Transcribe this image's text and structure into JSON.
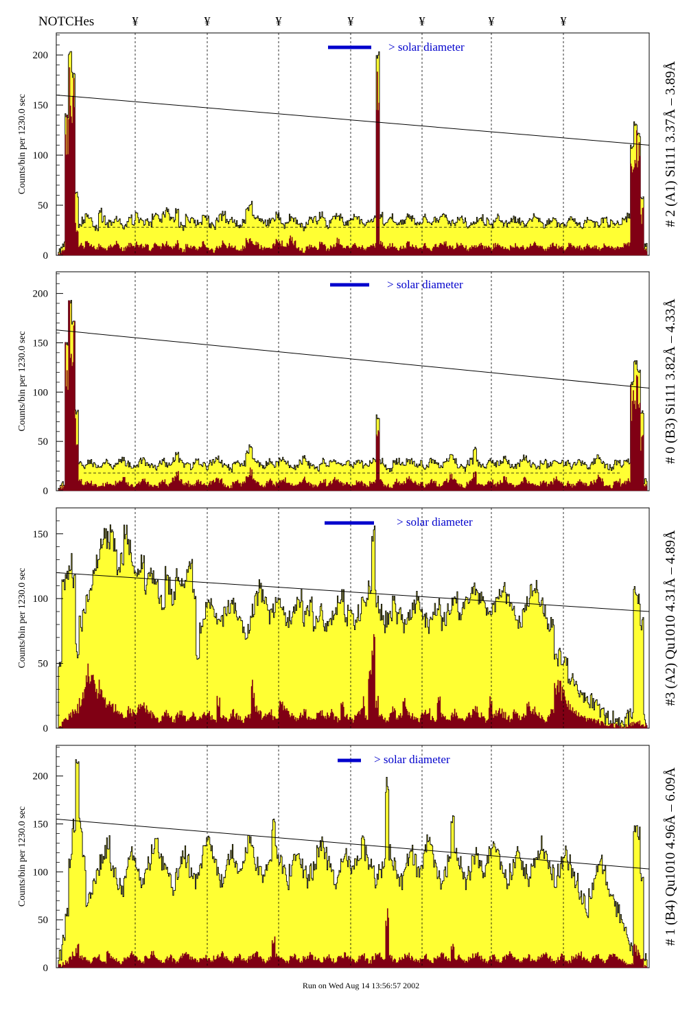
{
  "header": {
    "notches_label": "NOTCHes",
    "notch_symbol": "¥",
    "notch_count": 7
  },
  "footer": {
    "run_text": "Run on Wed Aug 14 13:56:57 2002"
  },
  "colors": {
    "fill_total": "#ffff33",
    "fill_sub": "#800014",
    "solar_bar": "#0000cc",
    "solar_text": "#0000cc",
    "line": "#000000"
  },
  "chart_data": [
    {
      "type": "bar",
      "panel_id": "p0",
      "ylabel": "Counts/bin per 1230.0 sec",
      "right_label": "# 2 (A1) Si111 3.37Å – 3.89Å",
      "solar_label": "> solar diameter",
      "yticks": [
        0,
        50,
        100,
        150,
        200
      ],
      "ylim": [
        0,
        222
      ],
      "trend": [
        160,
        110
      ],
      "dashed_level": 28,
      "baseline": 30,
      "noise": 9,
      "sub_level": 12,
      "total": [
        5,
        10,
        140,
        200,
        180,
        60,
        30,
        35,
        40,
        34,
        32,
        28,
        44,
        36,
        30,
        32,
        34,
        36,
        33,
        29,
        31,
        38,
        33,
        40,
        36,
        32,
        34,
        30,
        38,
        42,
        35,
        40,
        45,
        38,
        36,
        44,
        30,
        28,
        38,
        36,
        34,
        32,
        33,
        40,
        36,
        30,
        28,
        34,
        38,
        41,
        33,
        36,
        34,
        32,
        30,
        35,
        44,
        52,
        38,
        40,
        34,
        33,
        32,
        34,
        36,
        40,
        35,
        30,
        34,
        38,
        36,
        32,
        30,
        28,
        34,
        38,
        36,
        33,
        40,
        38,
        30,
        34,
        36,
        42,
        38,
        30,
        32,
        34,
        38,
        36,
        34,
        30,
        32,
        34,
        36,
        200,
        40,
        32,
        34,
        38,
        36,
        30,
        32,
        34,
        40,
        36,
        34,
        30,
        32,
        38,
        34,
        30,
        36,
        34,
        38,
        40,
        34,
        32,
        30,
        36,
        38,
        34,
        30,
        32,
        34,
        36,
        38,
        32,
        34,
        30,
        36,
        38,
        34,
        32,
        30,
        34,
        36,
        34,
        32,
        30,
        34,
        36,
        40,
        34,
        32,
        30,
        34,
        36,
        38,
        32,
        34,
        30,
        36,
        38,
        34,
        32,
        30,
        34,
        36,
        34,
        32,
        30,
        34,
        36,
        32,
        34,
        30,
        32,
        34,
        36,
        40,
        110,
        130,
        120,
        60,
        10
      ],
      "sub": [
        2,
        5,
        120,
        180,
        150,
        30,
        10,
        8,
        12,
        10,
        8,
        6,
        10,
        8,
        6,
        9,
        10,
        12,
        8,
        6,
        8,
        10,
        8,
        12,
        10,
        8,
        9,
        6,
        10,
        12,
        8,
        10,
        12,
        9,
        8,
        14,
        6,
        4,
        10,
        8,
        8,
        6,
        8,
        12,
        8,
        6,
        4,
        8,
        10,
        12,
        8,
        10,
        8,
        6,
        6,
        8,
        14,
        18,
        10,
        12,
        8,
        7,
        6,
        8,
        10,
        14,
        12,
        8,
        10,
        16,
        12,
        8,
        6,
        4,
        8,
        10,
        8,
        6,
        12,
        10,
        6,
        8,
        10,
        14,
        10,
        6,
        8,
        8,
        10,
        8,
        8,
        6,
        8,
        8,
        10,
        150,
        12,
        8,
        8,
        10,
        8,
        6,
        8,
        8,
        12,
        10,
        8,
        6,
        8,
        10,
        8,
        6,
        10,
        8,
        10,
        12,
        8,
        8,
        6,
        10,
        10,
        8,
        6,
        8,
        8,
        10,
        10,
        8,
        8,
        6,
        10,
        10,
        8,
        8,
        6,
        8,
        10,
        8,
        8,
        6,
        8,
        10,
        12,
        8,
        8,
        6,
        8,
        10,
        10,
        8,
        8,
        6,
        10,
        10,
        8,
        8,
        6,
        8,
        10,
        8,
        8,
        6,
        8,
        10,
        8,
        8,
        6,
        8,
        8,
        10,
        12,
        90,
        105,
        100,
        40,
        5
      ]
    },
    {
      "type": "bar",
      "panel_id": "p1",
      "ylabel": "Counts/bin per 1230.0 sec",
      "right_label": "# 0 (B3) Si111 3.82Å – 4.33Å",
      "solar_label": "> solar diameter",
      "yticks": [
        0,
        50,
        100,
        150,
        200
      ],
      "ylim": [
        0,
        222
      ],
      "trend": [
        163,
        104
      ],
      "dashed_level": 18,
      "baseline": 25,
      "noise": 8,
      "sub_level": 7,
      "total": [
        4,
        8,
        150,
        190,
        170,
        80,
        30,
        25,
        28,
        30,
        26,
        24,
        22,
        28,
        30,
        26,
        24,
        28,
        30,
        32,
        28,
        26,
        24,
        26,
        30,
        34,
        28,
        26,
        24,
        22,
        28,
        30,
        26,
        28,
        32,
        38,
        30,
        26,
        28,
        24,
        26,
        30,
        28,
        26,
        24,
        28,
        30,
        34,
        30,
        26,
        24,
        22,
        28,
        30,
        26,
        28,
        38,
        44,
        30,
        28,
        26,
        24,
        28,
        30,
        26,
        28,
        30,
        32,
        28,
        26,
        24,
        26,
        30,
        34,
        28,
        26,
        24,
        22,
        28,
        30,
        26,
        28,
        32,
        30,
        28,
        26,
        28,
        24,
        26,
        30,
        28,
        26,
        24,
        28,
        30,
        76,
        30,
        26,
        24,
        22,
        28,
        30,
        26,
        28,
        32,
        30,
        28,
        26,
        28,
        24,
        26,
        30,
        28,
        26,
        24,
        28,
        30,
        34,
        30,
        26,
        24,
        22,
        28,
        30,
        44,
        28,
        26,
        24,
        28,
        30,
        26,
        28,
        30,
        32,
        28,
        26,
        24,
        26,
        30,
        34,
        28,
        26,
        24,
        22,
        28,
        30,
        26,
        28,
        32,
        30,
        28,
        26,
        28,
        24,
        26,
        30,
        28,
        26,
        24,
        28,
        30,
        34,
        30,
        26,
        24,
        22,
        28,
        30,
        26,
        28,
        30,
        110,
        130,
        120,
        80,
        10
      ],
      "sub": [
        2,
        4,
        125,
        175,
        160,
        60,
        10,
        6,
        8,
        8,
        6,
        5,
        4,
        6,
        8,
        6,
        5,
        8,
        10,
        12,
        8,
        6,
        5,
        6,
        8,
        12,
        8,
        6,
        5,
        4,
        8,
        10,
        6,
        8,
        12,
        16,
        10,
        6,
        8,
        5,
        6,
        10,
        8,
        6,
        5,
        8,
        10,
        14,
        10,
        6,
        5,
        4,
        8,
        10,
        6,
        8,
        16,
        20,
        10,
        8,
        6,
        5,
        8,
        10,
        6,
        8,
        10,
        12,
        8,
        6,
        5,
        6,
        8,
        12,
        8,
        6,
        5,
        4,
        8,
        10,
        6,
        8,
        12,
        10,
        8,
        6,
        8,
        5,
        6,
        10,
        8,
        6,
        5,
        8,
        10,
        50,
        10,
        6,
        5,
        4,
        8,
        10,
        6,
        8,
        12,
        10,
        8,
        6,
        8,
        5,
        6,
        10,
        8,
        6,
        5,
        8,
        10,
        14,
        10,
        6,
        5,
        4,
        8,
        10,
        16,
        8,
        6,
        5,
        8,
        10,
        6,
        8,
        10,
        12,
        8,
        6,
        5,
        6,
        8,
        12,
        8,
        6,
        5,
        4,
        8,
        10,
        6,
        8,
        12,
        10,
        8,
        6,
        8,
        5,
        6,
        10,
        8,
        6,
        5,
        8,
        10,
        14,
        10,
        6,
        5,
        4,
        8,
        10,
        6,
        8,
        10,
        90,
        110,
        100,
        50,
        5
      ]
    },
    {
      "type": "bar",
      "panel_id": "p2",
      "ylabel": "Counts/bin per 1230.0 sec",
      "right_label": "#3 (A2) Qu1010 4.31Å – 4.89Å",
      "solar_label": "> solar diameter",
      "yticks": [
        0,
        50,
        100,
        150
      ],
      "ylim": [
        0,
        170
      ],
      "trend": [
        120,
        90
      ],
      "dashed_level": null,
      "baseline": 80,
      "noise": 18,
      "sub_level": 10,
      "total": [
        50,
        110,
        120,
        128,
        112,
        60,
        80,
        95,
        100,
        110,
        120,
        130,
        140,
        150,
        145,
        155,
        140,
        120,
        130,
        150,
        140,
        130,
        120,
        125,
        130,
        110,
        120,
        115,
        110,
        100,
        95,
        120,
        110,
        100,
        120,
        115,
        110,
        120,
        125,
        100,
        60,
        80,
        90,
        100,
        95,
        90,
        80,
        85,
        90,
        95,
        100,
        90,
        85,
        80,
        75,
        80,
        90,
        100,
        110,
        100,
        95,
        85,
        90,
        95,
        100,
        90,
        80,
        85,
        90,
        95,
        100,
        85,
        90,
        95,
        80,
        85,
        90,
        75,
        80,
        85,
        90,
        95,
        100,
        85,
        90,
        85,
        80,
        90,
        95,
        100,
        110,
        150,
        100,
        90,
        80,
        85,
        90,
        95,
        85,
        90,
        80,
        85,
        90,
        95,
        100,
        90,
        85,
        80,
        85,
        90,
        95,
        80,
        85,
        90,
        95,
        100,
        85,
        90,
        95,
        100,
        105,
        110,
        100,
        95,
        90,
        85,
        90,
        100,
        105,
        110,
        100,
        95,
        90,
        80,
        85,
        90,
        100,
        105,
        110,
        100,
        95,
        90,
        80,
        85,
        60,
        55,
        50,
        48,
        40,
        35,
        30,
        28,
        25,
        20,
        22,
        18,
        15,
        12,
        10,
        8,
        10,
        8,
        6,
        5,
        4,
        8,
        10,
        110,
        100,
        80,
        5
      ],
      "sub": [
        2,
        5,
        8,
        10,
        12,
        15,
        20,
        30,
        40,
        45,
        35,
        30,
        25,
        20,
        22,
        18,
        15,
        12,
        10,
        8,
        14,
        12,
        10,
        18,
        16,
        14,
        12,
        10,
        8,
        6,
        10,
        12,
        8,
        6,
        10,
        12,
        8,
        6,
        8,
        10,
        6,
        8,
        10,
        12,
        8,
        6,
        20,
        10,
        8,
        6,
        12,
        10,
        8,
        6,
        8,
        10,
        30,
        14,
        12,
        8,
        10,
        12,
        8,
        6,
        20,
        18,
        14,
        10,
        8,
        6,
        10,
        12,
        8,
        6,
        8,
        10,
        12,
        8,
        10,
        12,
        8,
        6,
        20,
        10,
        8,
        6,
        10,
        12,
        20,
        8,
        45,
        60,
        20,
        10,
        8,
        6,
        10,
        14,
        8,
        10,
        20,
        12,
        10,
        8,
        6,
        10,
        12,
        14,
        8,
        6,
        20,
        10,
        8,
        6,
        10,
        12,
        8,
        6,
        8,
        10,
        12,
        14,
        10,
        8,
        6,
        20,
        10,
        12,
        14,
        10,
        8,
        6,
        12,
        10,
        8,
        10,
        20,
        12,
        14,
        10,
        8,
        6,
        10,
        12,
        30,
        35,
        28,
        20,
        18,
        14,
        12,
        10,
        8,
        6,
        8,
        6,
        5,
        4,
        3,
        2,
        3,
        2,
        2,
        1,
        1,
        2,
        3,
        5,
        4,
        3,
        2
      ],
      "sub_extra_start": 0
    },
    {
      "type": "bar",
      "panel_id": "p3",
      "ylabel": "Counts/bin per 1230.0 sec",
      "right_label": "# 1 (B4) Qu1010 4.96Å – 6.09Å",
      "solar_label": "> solar diameter",
      "yticks": [
        0,
        50,
        100,
        150,
        200
      ],
      "ylim": [
        0,
        232
      ],
      "trend": [
        155,
        103
      ],
      "dashed_level": null,
      "baseline": 90,
      "noise": 22,
      "sub_level": 8,
      "total": [
        10,
        30,
        60,
        110,
        150,
        210,
        150,
        110,
        70,
        80,
        90,
        100,
        110,
        120,
        130,
        110,
        100,
        90,
        80,
        100,
        110,
        120,
        110,
        100,
        90,
        100,
        110,
        120,
        130,
        120,
        110,
        100,
        90,
        80,
        100,
        110,
        120,
        110,
        100,
        90,
        100,
        110,
        120,
        130,
        120,
        110,
        100,
        90,
        100,
        110,
        120,
        110,
        100,
        110,
        120,
        130,
        120,
        110,
        100,
        90,
        100,
        110,
        150,
        120,
        110,
        100,
        90,
        100,
        110,
        120,
        110,
        100,
        90,
        100,
        110,
        120,
        130,
        120,
        110,
        100,
        90,
        100,
        110,
        120,
        110,
        100,
        110,
        120,
        130,
        120,
        110,
        100,
        90,
        100,
        110,
        190,
        120,
        110,
        100,
        90,
        100,
        110,
        120,
        110,
        100,
        110,
        120,
        130,
        120,
        110,
        100,
        90,
        100,
        110,
        160,
        120,
        110,
        100,
        90,
        100,
        110,
        120,
        110,
        100,
        110,
        120,
        130,
        120,
        110,
        100,
        90,
        100,
        110,
        120,
        110,
        100,
        90,
        100,
        110,
        120,
        130,
        120,
        110,
        100,
        90,
        100,
        110,
        120,
        110,
        100,
        90,
        80,
        70,
        60,
        80,
        90,
        100,
        110,
        100,
        90,
        80,
        70,
        60,
        50,
        40,
        30,
        20,
        150,
        140,
        90,
        10
      ],
      "sub": [
        2,
        4,
        6,
        10,
        15,
        20,
        12,
        10,
        8,
        6,
        10,
        12,
        8,
        6,
        14,
        10,
        8,
        6,
        5,
        10,
        12,
        14,
        10,
        8,
        6,
        10,
        12,
        14,
        10,
        8,
        6,
        10,
        12,
        8,
        6,
        10,
        12,
        14,
        10,
        8,
        6,
        10,
        12,
        8,
        6,
        10,
        12,
        14,
        10,
        8,
        6,
        10,
        12,
        8,
        6,
        10,
        12,
        14,
        10,
        8,
        6,
        10,
        30,
        14,
        10,
        8,
        6,
        10,
        12,
        8,
        6,
        10,
        12,
        14,
        10,
        8,
        6,
        10,
        12,
        8,
        6,
        10,
        12,
        14,
        10,
        8,
        6,
        10,
        12,
        8,
        6,
        10,
        12,
        14,
        10,
        50,
        12,
        8,
        6,
        10,
        12,
        14,
        10,
        8,
        6,
        10,
        12,
        8,
        6,
        10,
        12,
        14,
        10,
        8,
        20,
        10,
        12,
        8,
        6,
        10,
        12,
        14,
        10,
        8,
        6,
        10,
        12,
        8,
        6,
        10,
        12,
        14,
        10,
        8,
        6,
        10,
        12,
        8,
        6,
        10,
        12,
        14,
        10,
        8,
        6,
        10,
        12,
        8,
        6,
        10,
        12,
        14,
        10,
        8,
        6,
        10,
        12,
        8,
        6,
        10,
        12,
        14,
        10,
        8,
        6,
        4,
        3,
        20,
        15,
        8,
        2
      ]
    }
  ]
}
